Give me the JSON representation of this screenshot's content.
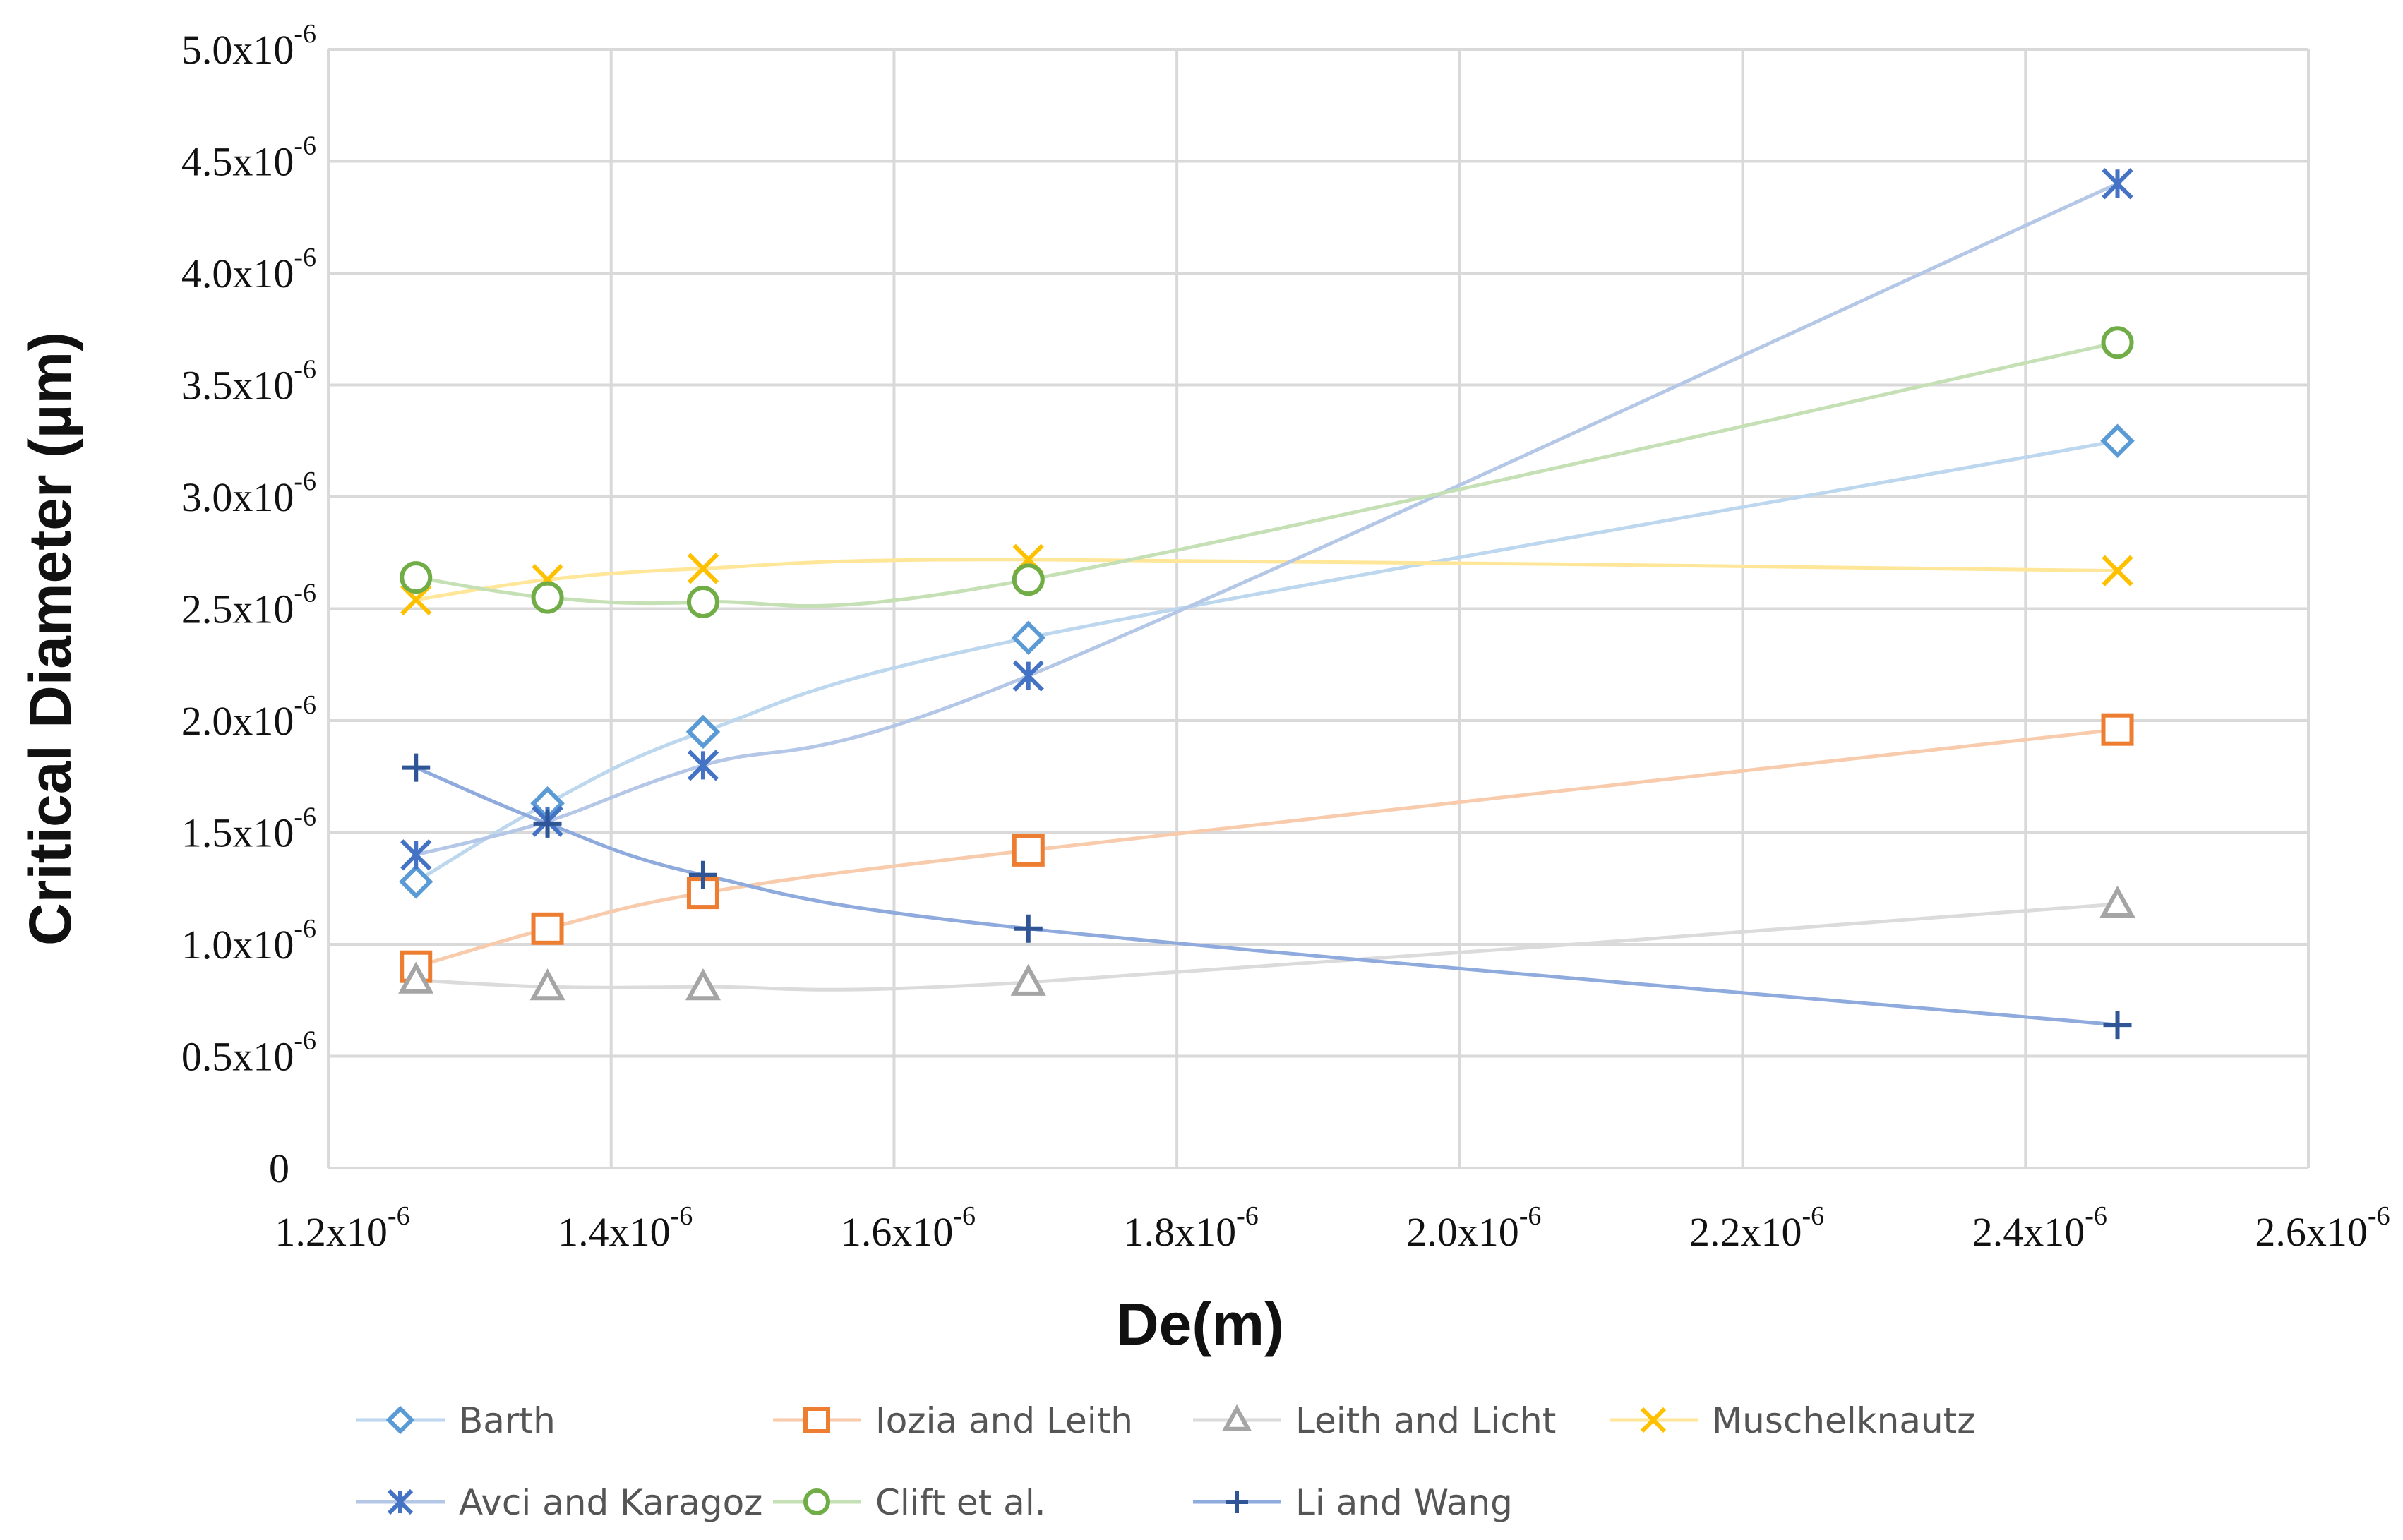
{
  "chart_data": {
    "type": "line",
    "title": "",
    "xlabel": "De(m)",
    "ylabel": "Critical Diameter (µm)",
    "xlim": [
      1.2e-06,
      2.6e-06
    ],
    "ylim": [
      0,
      5e-06
    ],
    "grid": true,
    "legend_position": "bottom",
    "x_ticks": [
      {
        "value": 1.2e-06,
        "base": "1.2x10",
        "exp": "-6"
      },
      {
        "value": 1.4e-06,
        "base": "1.4x10",
        "exp": "-6"
      },
      {
        "value": 1.6e-06,
        "base": "1.6x10",
        "exp": "-6"
      },
      {
        "value": 1.8e-06,
        "base": "1.8x10",
        "exp": "-6"
      },
      {
        "value": 2e-06,
        "base": "2.0x10",
        "exp": "-6"
      },
      {
        "value": 2.2e-06,
        "base": "2.2x10",
        "exp": "-6"
      },
      {
        "value": 2.4e-06,
        "base": "2.4x10",
        "exp": "-6"
      },
      {
        "value": 2.6e-06,
        "base": "2.6x10",
        "exp": "-6"
      }
    ],
    "y_ticks": [
      {
        "value": 0,
        "base": "0",
        "exp": ""
      },
      {
        "value": 5e-07,
        "base": "0.5x10",
        "exp": "-6"
      },
      {
        "value": 1e-06,
        "base": "1.0x10",
        "exp": "-6"
      },
      {
        "value": 1.5e-06,
        "base": "1.5x10",
        "exp": "-6"
      },
      {
        "value": 2e-06,
        "base": "2.0x10",
        "exp": "-6"
      },
      {
        "value": 2.5e-06,
        "base": "2.5x10",
        "exp": "-6"
      },
      {
        "value": 3e-06,
        "base": "3.0x10",
        "exp": "-6"
      },
      {
        "value": 3.5e-06,
        "base": "3.5x10",
        "exp": "-6"
      },
      {
        "value": 4e-06,
        "base": "4.0x10",
        "exp": "-6"
      },
      {
        "value": 4.5e-06,
        "base": "4.5x10",
        "exp": "-6"
      },
      {
        "value": 5e-06,
        "base": "5.0x10",
        "exp": "-6"
      }
    ],
    "x": [
      1.262e-06,
      1.355e-06,
      1.465e-06,
      1.695e-06,
      2.465e-06
    ],
    "series": [
      {
        "name": "Barth",
        "marker": "diamond",
        "color": "#5B9BD5",
        "line_color": "#BDD7EE",
        "values": [
          1.28e-06,
          1.63e-06,
          1.95e-06,
          2.37e-06,
          3.25e-06
        ]
      },
      {
        "name": "Iozia and Leith",
        "marker": "square",
        "color": "#ED7D31",
        "line_color": "#F8CBAD",
        "values": [
          9e-07,
          1.07e-06,
          1.23e-06,
          1.42e-06,
          1.96e-06
        ]
      },
      {
        "name": "Leith and Licht",
        "marker": "triangle",
        "color": "#A5A5A5",
        "line_color": "#DBDBDB",
        "values": [
          8.4e-07,
          8.1e-07,
          8.1e-07,
          8.3e-07,
          1.18e-06
        ]
      },
      {
        "name": "Muschelknautz",
        "marker": "x",
        "color": "#FFC000",
        "line_color": "#FFE699",
        "values": [
          2.54e-06,
          2.63e-06,
          2.68e-06,
          2.72e-06,
          2.67e-06
        ]
      },
      {
        "name": "Avci and Karagoz",
        "marker": "asterisk",
        "color": "#4472C4",
        "line_color": "#B4C7E7",
        "values": [
          1.4e-06,
          1.55e-06,
          1.8e-06,
          2.2e-06,
          4.4e-06
        ]
      },
      {
        "name": "Clift et al.",
        "marker": "circle",
        "color": "#70AD47",
        "line_color": "#C5E0B4",
        "values": [
          2.64e-06,
          2.55e-06,
          2.53e-06,
          2.63e-06,
          3.69e-06
        ]
      },
      {
        "name": "Li and Wang",
        "marker": "plus",
        "color": "#2F5597",
        "line_color": "#8FAADC",
        "values": [
          1.79e-06,
          1.54e-06,
          1.31e-06,
          1.07e-06,
          6.4e-07
        ]
      }
    ]
  }
}
